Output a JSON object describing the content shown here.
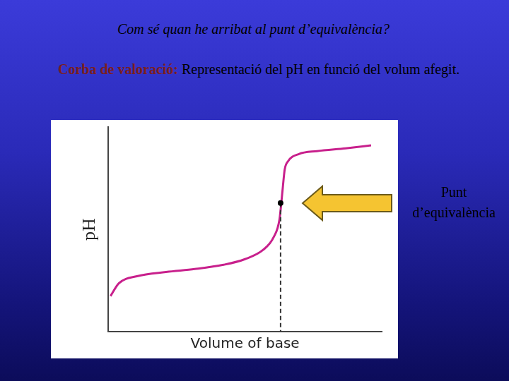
{
  "slide": {
    "title": "Com sé quan he arribat al punt d’equivalència?",
    "text_bold": "Corba de valoració:",
    "text": "Representació del pH en funció del volum afegit."
  },
  "chart_data": {
    "type": "line",
    "color": "#c8208c",
    "x_label": "Volume of base",
    "y_label": "pH",
    "x": [
      0.08,
      0.39,
      1.05,
      2.11,
      3.16,
      4.21,
      5.0,
      5.66,
      6.05,
      6.26,
      6.37,
      6.45,
      6.58,
      6.97,
      7.63,
      8.68,
      9.61
    ],
    "values": [
      2.43,
      3.31,
      3.79,
      4.08,
      4.28,
      4.57,
      4.96,
      5.59,
      6.47,
      7.68,
      9.63,
      11.08,
      11.67,
      12.15,
      12.35,
      12.54,
      12.74
    ],
    "xlim": [
      0,
      10
    ],
    "ylim": [
      0,
      14
    ],
    "xticks": [],
    "yticks": [],
    "grid": false,
    "tick_labels": false,
    "annotation": {
      "text": "Punt d’equivalència",
      "x": 6.3,
      "y": 8.8
    }
  }
}
